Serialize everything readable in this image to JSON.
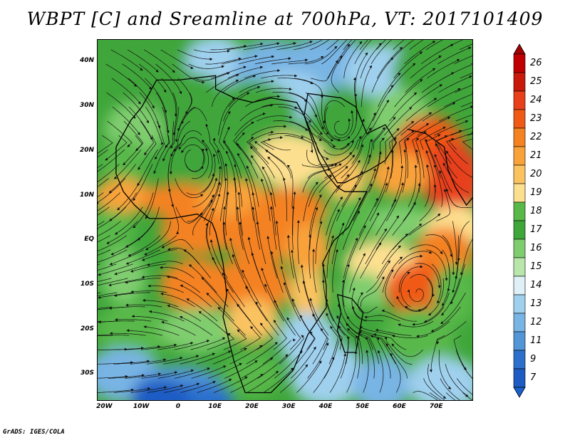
{
  "title": "WBPT [C] and Sreamline at 700hPa, VT: 2017101409",
  "credit": "GrADS: IGES/COLA",
  "lat_labels": [
    "40N",
    "30N",
    "20N",
    "10N",
    "EQ",
    "10S",
    "20S",
    "30S"
  ],
  "lat_values": [
    40,
    30,
    20,
    10,
    0,
    -10,
    -20,
    -30
  ],
  "lon_labels": [
    "20W",
    "10W",
    "0",
    "10E",
    "20E",
    "30E",
    "40E",
    "50E",
    "60E",
    "70E"
  ],
  "lon_values": [
    -20,
    -10,
    0,
    10,
    20,
    30,
    40,
    50,
    60,
    70
  ],
  "extent": {
    "lon": [
      -22,
      80
    ],
    "lat": [
      -36,
      45
    ]
  },
  "colorbar": {
    "labels": [
      "26",
      "25",
      "24",
      "23",
      "22",
      "21",
      "20",
      "19",
      "18",
      "17",
      "16",
      "15",
      "14",
      "13",
      "12",
      "11",
      "9",
      "7"
    ],
    "colors": [
      "#c00000",
      "#c8190a",
      "#e8401a",
      "#f05a14",
      "#f48220",
      "#f9a23a",
      "#fbc260",
      "#fde08f",
      "#58b848",
      "#3fa63a",
      "#7fcd6e",
      "#b8e6ab",
      "#dff0f7",
      "#9fd0ee",
      "#78b4e4",
      "#5296d8",
      "#2c70cc",
      "#1e5cc4"
    ],
    "top_arrow": "#a00000",
    "bottom_arrow": "#1860d0"
  },
  "features": {
    "warm_core": "Orange warm band across Sahel/central Africa and warm red-orange core over Arabian Sea/India",
    "cyclone_centers": [
      "West Africa north near 4E 19N",
      "Arabian Peninsula near 44E 25N",
      "Indian Ocean near 65E 12S"
    ]
  }
}
